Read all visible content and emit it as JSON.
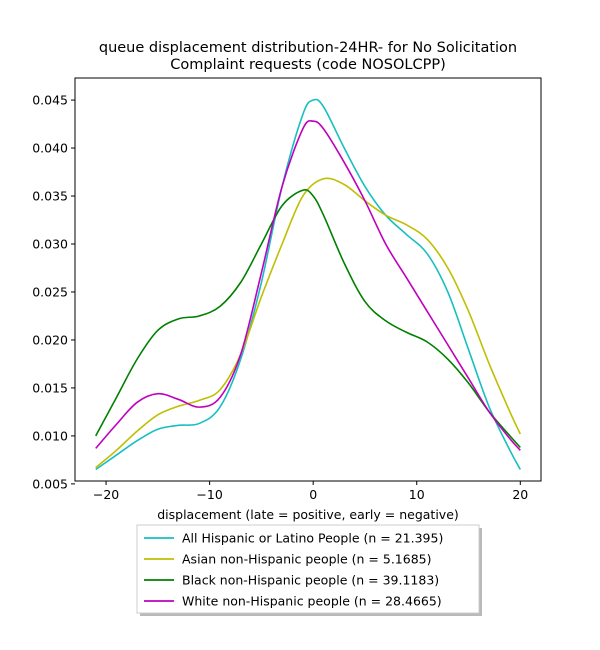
{
  "chart_data": {
    "type": "line",
    "title_line1": "queue displacement distribution-24HR-  for No Solicitation",
    "title_line2": "Complaint  requests (code NOSOLCPP)",
    "xlabel": "displacement (late = positive, early = negative)",
    "ylabel": "",
    "xlim": [
      -23,
      22
    ],
    "ylim": [
      0.0053,
      0.0473
    ],
    "xticks": [
      -20,
      -10,
      0,
      10,
      20
    ],
    "yticks": [
      0.005,
      0.01,
      0.015,
      0.02,
      0.025,
      0.03,
      0.035,
      0.04,
      0.045
    ],
    "legend_position": "below-plot",
    "grid": false,
    "series": [
      {
        "name": "All Hispanic or Latino People (n = 21.395)",
        "color": "#17bfbf",
        "x": [
          -21,
          -19,
          -17,
          -15,
          -13,
          -11,
          -9,
          -7,
          -5,
          -3,
          -1,
          0,
          1,
          3,
          5,
          7,
          9,
          11,
          13,
          15,
          17,
          19,
          20
        ],
        "y": [
          0.0065,
          0.008,
          0.0095,
          0.0107,
          0.0111,
          0.0113,
          0.013,
          0.018,
          0.026,
          0.036,
          0.0435,
          0.045,
          0.0443,
          0.04,
          0.036,
          0.033,
          0.031,
          0.029,
          0.025,
          0.019,
          0.013,
          0.0085,
          0.0065
        ]
      },
      {
        "name": "Asian non-Hispanic people (n = 5.1685)",
        "color": "#bfbf00",
        "x": [
          -21,
          -19,
          -17,
          -15,
          -13,
          -11,
          -9,
          -7,
          -5,
          -3,
          -1,
          1,
          3,
          5,
          7,
          9,
          11,
          13,
          15,
          17,
          19,
          20
        ],
        "y": [
          0.0067,
          0.0085,
          0.0105,
          0.0122,
          0.0131,
          0.0137,
          0.0148,
          0.0185,
          0.0245,
          0.03,
          0.035,
          0.0368,
          0.0362,
          0.0345,
          0.033,
          0.032,
          0.0305,
          0.0275,
          0.023,
          0.0175,
          0.0125,
          0.0102
        ]
      },
      {
        "name": "Black non-Hispanic people (n = 39.1183)",
        "color": "#008000",
        "x": [
          -21,
          -19,
          -17,
          -15,
          -13,
          -11,
          -9,
          -7,
          -5,
          -3,
          -1,
          0,
          1,
          3,
          5,
          7,
          9,
          11,
          13,
          15,
          17,
          19,
          20
        ],
        "y": [
          0.01,
          0.014,
          0.018,
          0.021,
          0.0222,
          0.0225,
          0.0235,
          0.026,
          0.03,
          0.034,
          0.0356,
          0.035,
          0.033,
          0.028,
          0.024,
          0.022,
          0.0208,
          0.0198,
          0.018,
          0.0155,
          0.0125,
          0.01,
          0.0088
        ]
      },
      {
        "name": "White non-Hispanic people (n = 28.4665)",
        "color": "#bf00bf",
        "x": [
          -21,
          -19,
          -17,
          -15,
          -13,
          -11,
          -9,
          -7,
          -5,
          -3,
          -1,
          0,
          1,
          3,
          5,
          7,
          9,
          11,
          13,
          15,
          17,
          19,
          20
        ],
        "y": [
          0.0087,
          0.0112,
          0.0135,
          0.0144,
          0.0138,
          0.013,
          0.014,
          0.0185,
          0.027,
          0.036,
          0.042,
          0.0428,
          0.042,
          0.0385,
          0.0345,
          0.03,
          0.0265,
          0.023,
          0.0195,
          0.016,
          0.0125,
          0.0097,
          0.0085
        ]
      }
    ]
  }
}
